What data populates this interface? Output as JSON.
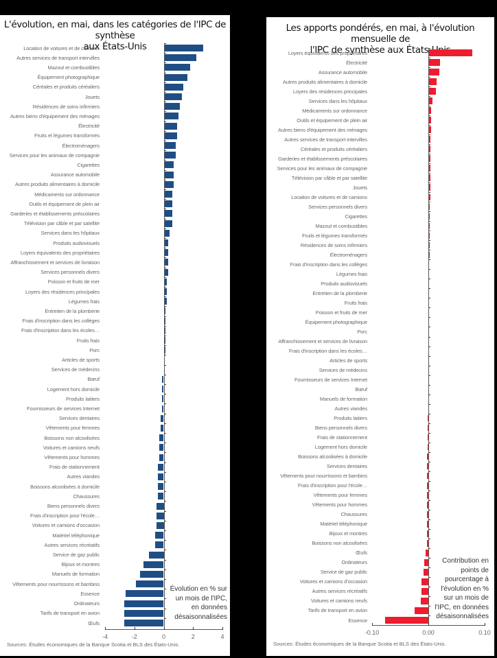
{
  "chart_data": [
    {
      "type": "bar",
      "orientation": "horizontal",
      "title": "L'évolution, en mai, dans les catégories de l'IPC de synthèse aux États-Unis",
      "xlabel": "Évolution en % sur un mois de l'IPC, en données désaisonnalisées",
      "xlim": [
        -4,
        4
      ],
      "xticks": [
        "-4",
        "-2",
        "0",
        "2",
        "4"
      ],
      "bar_color": "#1f4e85",
      "source": "Sources: Études économiques de la Banque Scotia et BLS des États-Unis.",
      "categories": [
        "Location de voitures et de camions",
        "Autres services de transport intervilles",
        "Mazout et combustibles",
        "Équipement photographique",
        "Céréales et produits céréaliers",
        "Jouets",
        "Résidences de soins infirmiers",
        "Autres biens d'équipement des ménages",
        "Électricité",
        "Fruits et légumes transformés",
        "Électroménagers",
        "Services pour les animaux de compagnie",
        "Cigarettes",
        "Assurance automobile",
        "Autres produits alimentaires à domicile",
        "Médicaments sur ordonnance",
        "Outils et équipement de plein air",
        "Garderies et établissements préscolaires",
        "Télévision par câble et par satellite",
        "Services dans les hôpitaux",
        "Produits audiovisuels",
        "Loyers équivalents des propriétaires",
        "Affranchissement et services de livraison",
        "Services personnels divers",
        "Poisson et fruits de mer",
        "Loyers des résidences principales",
        "Légumes frais",
        "Entretien de la plomberie",
        "Frais d'inscription dans les collèges",
        "Frais d'inscription dans les écoles…",
        "Fruits frais",
        "Porc",
        "Articles de sports",
        "Services de médecins",
        "Bœuf",
        "Logement hors domicile",
        "Produits laitiers",
        "Fournisseurs de services Internet",
        "Services dentaires",
        "Vêtements pour femmes",
        "Boissons non alcoolisées",
        "Voitures et camions neufs",
        "Vêtements pour hommes",
        "Frais de stationnement",
        "Autres viandes",
        "Boissons alcoolisées à domicile",
        "Chaussures",
        "Biens personnels divers",
        "Frais d'inscription pour l'école…",
        "Voitures et camions d'occasion",
        "Matériel téléphonique",
        "Autres services récréatifs",
        "Service de gaz public",
        "Bijoux et montres",
        "Manuels de formation",
        "Vêtements pour nourrissons et bambins",
        "Essence",
        "Ordinateurs",
        "Tarifs de transport en avion",
        "Œufs"
      ],
      "values": [
        2.7,
        2.2,
        1.8,
        1.6,
        1.35,
        1.25,
        1.1,
        1.0,
        0.9,
        0.9,
        0.8,
        0.8,
        0.7,
        0.7,
        0.7,
        0.6,
        0.6,
        0.6,
        0.6,
        0.4,
        0.3,
        0.3,
        0.3,
        0.3,
        0.2,
        0.2,
        0.2,
        0.1,
        0.1,
        0.1,
        0.1,
        0.1,
        0.0,
        0.0,
        -0.1,
        -0.1,
        -0.1,
        -0.1,
        -0.2,
        -0.2,
        -0.3,
        -0.3,
        -0.3,
        -0.4,
        -0.4,
        -0.4,
        -0.4,
        -0.5,
        -0.5,
        -0.5,
        -0.6,
        -0.6,
        -1.0,
        -1.4,
        -1.6,
        -1.9,
        -2.6,
        -2.7,
        -2.7,
        -2.7
      ]
    },
    {
      "type": "bar",
      "orientation": "horizontal",
      "title": "Les apports pondérés, en mai, à l'évolution mensuelle de l'IPC de synthèse aux États-Unis",
      "xlabel": "Contribution en points de pourcentage à l'évolution en % sur un mois de l'IPC, en données désaisonnalisées",
      "xlim": [
        -0.1,
        0.1
      ],
      "xticks": [
        "-0.10",
        "0.00",
        "0.10"
      ],
      "bar_color": "#ee1c2e",
      "source": "Sources: Études économiques de la Banque Scotia et BLS des États-Unis.",
      "categories": [
        "Loyers équivalents des propriétaires",
        "Électricité",
        "Assurance automobile",
        "Autres produits alimentaires à domicile",
        "Loyers des résidences principales",
        "Services dans les hôpitaux",
        "Médicaments sur ordonnance",
        "Outils et équipement de plein air",
        "Autres biens d'équipement des ménages",
        "Autres services de transport intervilles",
        "Céréales et produits céréaliers",
        "Garderies et établissements préscolaires",
        "Services pour les animaux de compagnie",
        "Télévision par câble et par satellite",
        "Jouets",
        "Location de voitures et de camions",
        "Services personnels divers",
        "Cigarettes",
        "Mazout et combustibles",
        "Fruits et légumes transformés",
        "Résidences de soins infirmiers",
        "Électroménagers",
        "Frais d'inscription dans les collèges",
        "Légumes frais",
        "Produits audiovisuels",
        "Entretien de la plomberie",
        "Fruits frais",
        "Poisson et fruits de mer",
        "Équipement photographique",
        "Porc",
        "Affranchissement et services de livraison",
        "Frais d'inscription dans les écoles…",
        "Articles de sports",
        "Services de médecins",
        "Fournisseurs de services Internet",
        "Bœuf",
        "Manuels de formation",
        "Autres viandes",
        "Produits laitiers",
        "Biens personnels divers",
        "Frais de stationnement",
        "Logement hors domicile",
        "Boissons alcoolisées à domicile",
        "Services dentaires",
        "Vêtements pour nourrissons et bambins",
        "Frais d'inscription pour l'école…",
        "Vêtements pour femmes",
        "Vêtements pour hommes",
        "Chaussures",
        "Matériel téléphonique",
        "Bijoux et montres",
        "Boissons non alcoolisées",
        "Œufs",
        "Ordinateurs",
        "Service de gaz public",
        "Voitures et camions d'occasion",
        "Autres services récréatifs",
        "Voitures et camions neufs",
        "Tarifs de transport en avion",
        "Essence"
      ],
      "values": [
        0.078,
        0.021,
        0.019,
        0.015,
        0.014,
        0.007,
        0.005,
        0.005,
        0.005,
        0.004,
        0.004,
        0.004,
        0.004,
        0.004,
        0.004,
        0.004,
        0.003,
        0.003,
        0.003,
        0.002,
        0.002,
        0.002,
        0.001,
        0.001,
        0.001,
        0.001,
        0.001,
        0.001,
        0.001,
        0.001,
        0.001,
        0.001,
        0.0,
        0.0,
        0.0,
        0.0,
        0.0,
        0.0,
        -0.001,
        -0.001,
        -0.001,
        -0.001,
        -0.002,
        -0.002,
        -0.002,
        -0.002,
        -0.002,
        -0.002,
        -0.002,
        -0.002,
        -0.002,
        -0.002,
        -0.005,
        -0.007,
        -0.008,
        -0.012,
        -0.012,
        -0.013,
        -0.025,
        -0.077
      ]
    }
  ],
  "left": {
    "title_line1": "L'évolution, en mai, dans les catégories de l'IPC de synthèse",
    "title_line2": "aux États-Unis",
    "note": [
      "Évolution en % sur",
      "un mois de l'IPC,",
      "en données",
      "désaisonnalisées"
    ],
    "source": "Sources: Études économiques de la Banque Scotia et BLS des États-Unis."
  },
  "right": {
    "title_line1": "Les apports pondérés, en mai, à l'évolution mensuelle de",
    "title_line2": "l'IPC de synthèse aux États-Unis",
    "note": [
      "Contribution en",
      "points de",
      "pourcentage à",
      "l'évolution en %",
      "sur un mois de",
      "l'IPC, en données",
      "désaisonnalisées"
    ],
    "source": "Sources: Études économiques de la Banque Scotia et BLS des États-Unis."
  }
}
